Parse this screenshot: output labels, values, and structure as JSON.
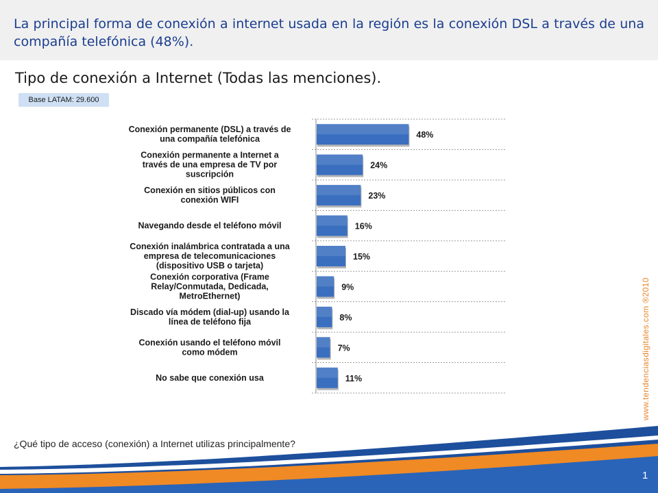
{
  "slide": {
    "headline": "La principal forma de conexión a internet usada en la región es la conexión DSL a través de una compañía telefónica (48%).",
    "subtitle": "Tipo de conexión a Internet (Todas las menciones).",
    "base_label": "Base LATAM: 29.600",
    "question": "¿Qué tipo de acceso (conexión) a Internet utilizas principalmente?",
    "credit": "www.tendenciasdigitales.com ®2010",
    "page_number": "1"
  },
  "colors": {
    "headline": "#1a3d8f",
    "bar": "#3a6fc0",
    "credit": "#e8862c",
    "wave_blue": "#1d4f9c",
    "wave_orange": "#f08a24"
  },
  "chart_data": {
    "type": "bar",
    "orientation": "horizontal",
    "categories": [
      [
        "Conexión permanente (DSL) a través de",
        "una compañía telefónica"
      ],
      [
        "Conexión permanente a Internet a",
        "través de una empresa de TV por",
        "suscripción"
      ],
      [
        "Conexión en sitios públicos con",
        "conexión WIFI"
      ],
      [
        "Navegando desde el teléfono móvil"
      ],
      [
        "Conexión inalámbrica contratada a una",
        "empresa de telecomunicaciones",
        "(dispositivo USB o tarjeta)"
      ],
      [
        "Conexión corporativa (Frame",
        "Relay/Conmutada, Dedicada,",
        "MetroEthernet)"
      ],
      [
        "Discado vía módem (dial-up) usando la",
        "línea de teléfono fija"
      ],
      [
        "Conexión usando el teléfono móvil",
        "como módem"
      ],
      [
        "No sabe que conexión usa"
      ]
    ],
    "values": [
      48,
      24,
      23,
      16,
      15,
      9,
      8,
      7,
      11
    ],
    "value_labels": [
      "48%",
      "24%",
      "23%",
      "16%",
      "15%",
      "9%",
      "8%",
      "7%",
      "11%"
    ],
    "unit": "%",
    "xlim": [
      0,
      100
    ],
    "grid": true
  }
}
